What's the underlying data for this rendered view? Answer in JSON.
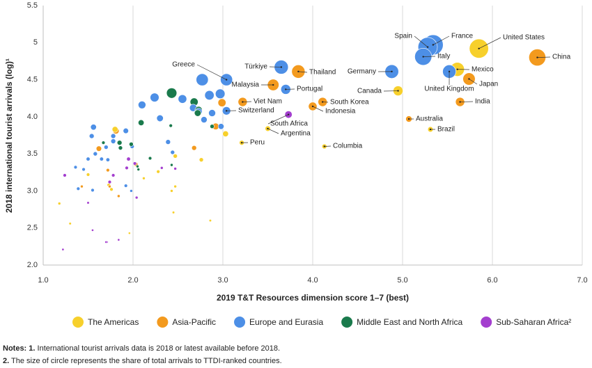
{
  "chart_data": {
    "type": "bubble",
    "x_label": "2019 T&T Resources dimension score 1–7 (best)",
    "y_label": "2018 international tourist arrivals (log)¹",
    "xlim": [
      1.0,
      7.0
    ],
    "xticks": [
      {
        "value": 1.0,
        "label": "1.0"
      },
      {
        "value": 2.0,
        "label": "2.0"
      },
      {
        "value": 3.0,
        "label": "3.0"
      },
      {
        "value": 4.0,
        "label": "4.0"
      },
      {
        "value": 5.0,
        "label": "5.0"
      },
      {
        "value": 6.0,
        "label": "6.0"
      },
      {
        "value": 7.0,
        "label": "7.0"
      }
    ],
    "ylim": [
      2.0,
      5.5
    ],
    "yticks": [
      {
        "value": 2.0,
        "label": "2.0"
      },
      2.5,
      {
        "value": 3.0,
        "label": "3.0"
      },
      3.5,
      {
        "value": 4.0,
        "label": "4.0"
      },
      4.5,
      5,
      5.5
    ],
    "grid": "x",
    "series": [
      {
        "name": "The Americas",
        "color": "#f7d02c",
        "labels": [
          "United States",
          "Mexico",
          "Canada",
          "Argentina",
          "Peru",
          "Brazil",
          "Columbia",
          null,
          null,
          null,
          null,
          null,
          null,
          null,
          null,
          null,
          null,
          null,
          null,
          null,
          null,
          null,
          null
        ],
        "x": [
          5.85,
          5.61,
          4.95,
          3.5,
          3.21,
          5.31,
          4.13,
          3.03,
          1.8,
          2.47,
          2.76,
          2.28,
          1.73,
          1.5,
          1.76,
          1.18,
          1.3,
          2.86,
          2.43,
          2.45,
          1.96,
          2.47,
          2.12
        ],
        "values": [
          4.92,
          4.64,
          4.35,
          3.84,
          3.65,
          3.83,
          3.6,
          3.77,
          3.83,
          3.47,
          3.42,
          3.26,
          3.08,
          3.22,
          3.02,
          2.83,
          2.56,
          2.6,
          3.0,
          2.71,
          2.43,
          3.06,
          3.17
        ],
        "sizes": [
          8.0,
          4.0,
          1.8,
          0.4,
          0.3,
          0.4,
          0.3,
          0.5,
          0.5,
          0.2,
          0.2,
          0.1,
          0.1,
          0.1,
          0.1,
          0.05,
          0.03,
          0.03,
          0.05,
          0.03,
          0.02,
          0.05,
          0.05
        ]
      },
      {
        "name": "Asia-Pacific",
        "color": "#f39a1e",
        "labels": [
          "China",
          "Japan",
          "India",
          "Australia",
          "Thailand",
          "Malaysia",
          "Viet Nam",
          "South Korea",
          "Indonesia",
          null,
          null,
          null,
          null,
          null,
          null,
          null,
          null,
          null,
          null
        ],
        "x": [
          6.5,
          5.74,
          5.64,
          5.07,
          3.84,
          3.56,
          3.22,
          4.11,
          4.0,
          1.81,
          1.62,
          2.99,
          2.92,
          2.68,
          2.03,
          1.84,
          1.72,
          1.74,
          1.43
        ],
        "values": [
          4.8,
          4.51,
          4.2,
          3.97,
          4.61,
          4.43,
          4.2,
          4.2,
          4.14,
          3.81,
          3.57,
          4.19,
          3.87,
          3.58,
          3.36,
          2.93,
          3.28,
          3.06,
          3.06
        ],
        "sizes": [
          6.1,
          3.0,
          1.5,
          0.6,
          3.6,
          2.6,
          1.5,
          1.5,
          1.3,
          0.6,
          0.4,
          1.1,
          0.7,
          0.3,
          0.2,
          0.05,
          0.1,
          0.05,
          0.05
        ]
      },
      {
        "name": "Europe and Eurasia",
        "color": "#4d8fe6",
        "labels": [
          "France",
          "Spain",
          "Italy",
          "Germany",
          "United Kingdom",
          "Türkiye",
          "Greece",
          "Portugal",
          "Switzerland",
          null,
          null,
          null,
          null,
          null,
          null,
          null,
          null,
          null,
          null,
          null,
          null,
          null,
          null,
          null,
          null,
          null,
          null,
          null,
          null,
          null,
          null,
          null,
          null,
          null,
          null,
          null,
          null,
          null,
          null,
          null
        ],
        "x": [
          5.34,
          5.28,
          5.23,
          4.88,
          5.52,
          3.65,
          3.04,
          3.7,
          3.04,
          2.77,
          2.97,
          2.85,
          2.55,
          2.24,
          2.1,
          2.67,
          2.73,
          2.88,
          2.3,
          2.79,
          2.98,
          1.56,
          1.92,
          2.39,
          1.78,
          1.54,
          1.78,
          1.7,
          1.99,
          1.58,
          2.44,
          1.36,
          1.45,
          1.65,
          1.72,
          1.5,
          1.39,
          1.55,
          1.92,
          1.98
        ],
        "values": [
          4.97,
          4.94,
          4.81,
          4.61,
          4.61,
          4.67,
          4.5,
          4.37,
          4.08,
          4.5,
          4.31,
          4.29,
          4.24,
          4.26,
          4.16,
          4.12,
          4.07,
          4.05,
          3.98,
          3.96,
          3.87,
          3.86,
          3.81,
          3.66,
          3.74,
          3.74,
          3.67,
          3.59,
          3.6,
          3.5,
          3.52,
          3.32,
          3.29,
          3.43,
          3.42,
          3.43,
          3.03,
          3.01,
          3.07,
          3.0
        ],
        "sizes": [
          8.9,
          8.2,
          6.2,
          3.8,
          3.6,
          4.0,
          2.9,
          1.8,
          1.2,
          2.9,
          1.7,
          1.6,
          1.3,
          1.4,
          1.0,
          0.9,
          0.8,
          0.8,
          0.7,
          0.6,
          0.5,
          0.5,
          0.4,
          0.3,
          0.3,
          0.3,
          0.3,
          0.2,
          0.2,
          0.2,
          0.2,
          0.1,
          0.1,
          0.15,
          0.15,
          0.15,
          0.1,
          0.1,
          0.1,
          0.05
        ]
      },
      {
        "name": "Middle East and North Africa",
        "color": "#1a7a4c",
        "labels": [
          null,
          null,
          null,
          null,
          null,
          null,
          null,
          null,
          null,
          null,
          null,
          null,
          null,
          null,
          null
        ],
        "x": [
          2.43,
          2.68,
          2.73,
          2.72,
          2.09,
          1.85,
          1.98,
          1.86,
          2.19,
          2.06,
          2.05,
          2.43,
          1.67,
          2.42,
          2.88
        ],
        "values": [
          4.32,
          4.2,
          4.09,
          4.05,
          3.92,
          3.65,
          3.63,
          3.58,
          3.44,
          3.29,
          3.33,
          3.35,
          3.65,
          3.88,
          3.87
        ],
        "sizes": [
          2.0,
          1.1,
          0.9,
          0.7,
          0.5,
          0.3,
          0.2,
          0.2,
          0.1,
          0.05,
          0.05,
          0.05,
          0.1,
          0.1,
          0.2
        ]
      },
      {
        "name": "Sub-Saharan Africa²",
        "color": "#a43fcf",
        "labels": [
          "South Africa",
          null,
          null,
          null,
          null,
          null,
          null,
          null,
          null,
          null,
          null,
          null,
          null,
          null,
          null,
          null
        ],
        "x": [
          3.73,
          1.24,
          1.78,
          1.74,
          1.95,
          1.93,
          2.02,
          2.32,
          2.47,
          2.04,
          1.5,
          1.71,
          1.55,
          1.22,
          1.84,
          1.7
        ],
        "values": [
          4.03,
          3.21,
          3.21,
          3.12,
          3.43,
          3.31,
          3.37,
          3.31,
          3.3,
          2.91,
          2.84,
          2.31,
          2.47,
          2.21,
          2.34,
          2.31
        ],
        "sizes": [
          0.9,
          0.1,
          0.1,
          0.1,
          0.15,
          0.1,
          0.1,
          0.05,
          0.05,
          0.05,
          0.03,
          0.02,
          0.02,
          0.02,
          0.02,
          0.02
        ]
      }
    ],
    "notes": [
      {
        "prefix": "Notes: 1.",
        "text": " International tourist arrivals data is 2018 or latest available before 2018."
      },
      {
        "prefix": "2.",
        "text": " The size of circle represents the share of total arrivals to TTDI-ranked countries."
      }
    ]
  }
}
